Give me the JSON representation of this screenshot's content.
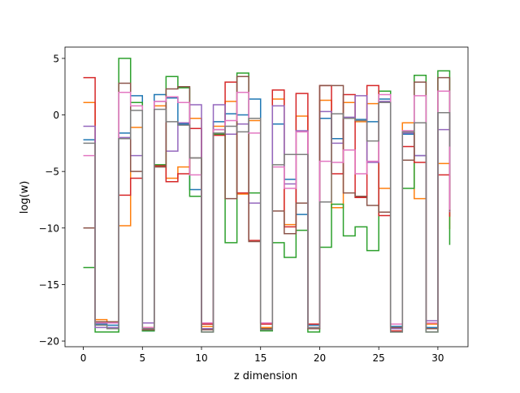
{
  "chart_data": {
    "type": "line",
    "step": "post",
    "xlabel": "z dimension",
    "ylabel": "log(w)",
    "xlim": [
      -1.55,
      32.55
    ],
    "ylim": [
      -20.5,
      6.0
    ],
    "xticks": [
      0,
      5,
      10,
      15,
      20,
      25,
      30
    ],
    "yticks": [
      5,
      0,
      -5,
      -10,
      -15,
      -20
    ],
    "x": [
      0,
      1,
      2,
      3,
      4,
      5,
      6,
      7,
      8,
      9,
      10,
      11,
      12,
      13,
      14,
      15,
      16,
      17,
      18,
      19,
      20,
      21,
      22,
      23,
      24,
      25,
      26,
      27,
      28,
      29,
      30,
      31
    ],
    "series": [
      {
        "color": "#1f77b4",
        "values": [
          -2.2,
          -18.5,
          -18.6,
          -1.6,
          1.7,
          -19.1,
          1.8,
          1.5,
          -0.8,
          -6.6,
          -18.5,
          -0.6,
          0.1,
          0.0,
          1.4,
          -18.4,
          -0.8,
          -5.7,
          -8.8,
          -18.6,
          -0.3,
          -2.1,
          -0.3,
          -0.4,
          -0.6,
          1.4,
          -18.7,
          -1.7,
          -3.6,
          -18.8,
          0.2,
          -6.7
        ]
      },
      {
        "color": "#ff7f0e",
        "values": [
          1.1,
          -18.1,
          -18.3,
          -9.8,
          -1.1,
          -18.8,
          0.8,
          -5.6,
          -4.6,
          -0.3,
          -18.7,
          -1.0,
          1.2,
          -7.0,
          -0.5,
          -18.8,
          1.4,
          -9.7,
          -0.1,
          -18.9,
          1.3,
          -8.2,
          1.1,
          -0.6,
          1.0,
          -6.5,
          -18.9,
          -0.7,
          -7.4,
          -18.5,
          -4.3,
          -10.1
        ]
      },
      {
        "color": "#2ca02c",
        "values": [
          -13.5,
          -19.2,
          -19.2,
          5.0,
          1.1,
          -19.1,
          -4.4,
          3.4,
          2.4,
          -7.2,
          -19.2,
          -1.7,
          -11.3,
          3.7,
          -6.9,
          -19.1,
          -11.3,
          -12.6,
          -10.2,
          -19.2,
          -11.7,
          -7.9,
          -10.7,
          -9.9,
          -12.0,
          2.1,
          -19.2,
          -6.5,
          3.5,
          -19.2,
          3.9,
          -11.5
        ]
      },
      {
        "color": "#d62728",
        "values": [
          3.3,
          -18.3,
          -18.4,
          -7.1,
          -5.6,
          -18.4,
          -4.5,
          -5.9,
          -5.2,
          -1.2,
          -18.5,
          -1.8,
          2.9,
          -6.9,
          -11.1,
          -18.5,
          2.2,
          -9.9,
          1.9,
          -18.5,
          2.6,
          -5.2,
          1.8,
          -7.3,
          2.6,
          -8.9,
          -19.1,
          -2.8,
          -4.2,
          -18.9,
          -5.3,
          -9.0
        ]
      },
      {
        "color": "#9467bd",
        "values": [
          -1.0,
          -18.8,
          -18.8,
          -2.0,
          -3.6,
          -18.4,
          1.2,
          -3.2,
          -0.7,
          0.9,
          -18.9,
          0.9,
          -1.7,
          -0.8,
          -7.8,
          -18.4,
          0.8,
          -6.1,
          -1.4,
          -18.9,
          0.3,
          -2.5,
          -0.2,
          1.7,
          -4.2,
          1.2,
          -18.9,
          -1.6,
          -3.6,
          -18.2,
          -1.3,
          -8.6
        ]
      },
      {
        "color": "#8c564b",
        "values": [
          -10.0,
          -18.3,
          -18.3,
          2.8,
          -5.0,
          -19.0,
          -4.6,
          2.3,
          2.5,
          -3.8,
          -19.0,
          -1.3,
          -7.4,
          3.4,
          -11.2,
          -18.9,
          -8.5,
          -10.5,
          -7.8,
          -18.9,
          2.6,
          2.6,
          -6.9,
          -7.2,
          -8.0,
          -8.6,
          -18.8,
          -4.0,
          2.9,
          -18.9,
          3.3,
          -8.5
        ]
      },
      {
        "color": "#e377c2",
        "values": [
          -3.6,
          -18.4,
          -18.4,
          2.0,
          0.8,
          -18.8,
          1.2,
          1.6,
          1.1,
          -5.3,
          -18.4,
          -1.3,
          -0.5,
          2.0,
          -1.6,
          -18.4,
          -4.6,
          -6.5,
          -1.5,
          -18.8,
          -4.1,
          -4.2,
          -3.1,
          -5.2,
          -4.1,
          1.8,
          -18.5,
          -1.4,
          1.7,
          -18.4,
          2.1,
          -8.4
        ]
      },
      {
        "color": "#7f7f7f",
        "values": [
          -2.5,
          -18.6,
          -18.9,
          -2.1,
          0.4,
          -18.9,
          0.5,
          -0.6,
          -0.9,
          -3.8,
          -19.2,
          -1.6,
          -1.0,
          -1.5,
          -0.3,
          -19.0,
          -4.4,
          -3.5,
          -3.5,
          -18.8,
          -7.7,
          0.1,
          -0.3,
          -0.5,
          -2.3,
          1.1,
          -19.2,
          -1.5,
          -0.7,
          -19.2,
          0.2,
          -2.8
        ]
      }
    ]
  }
}
